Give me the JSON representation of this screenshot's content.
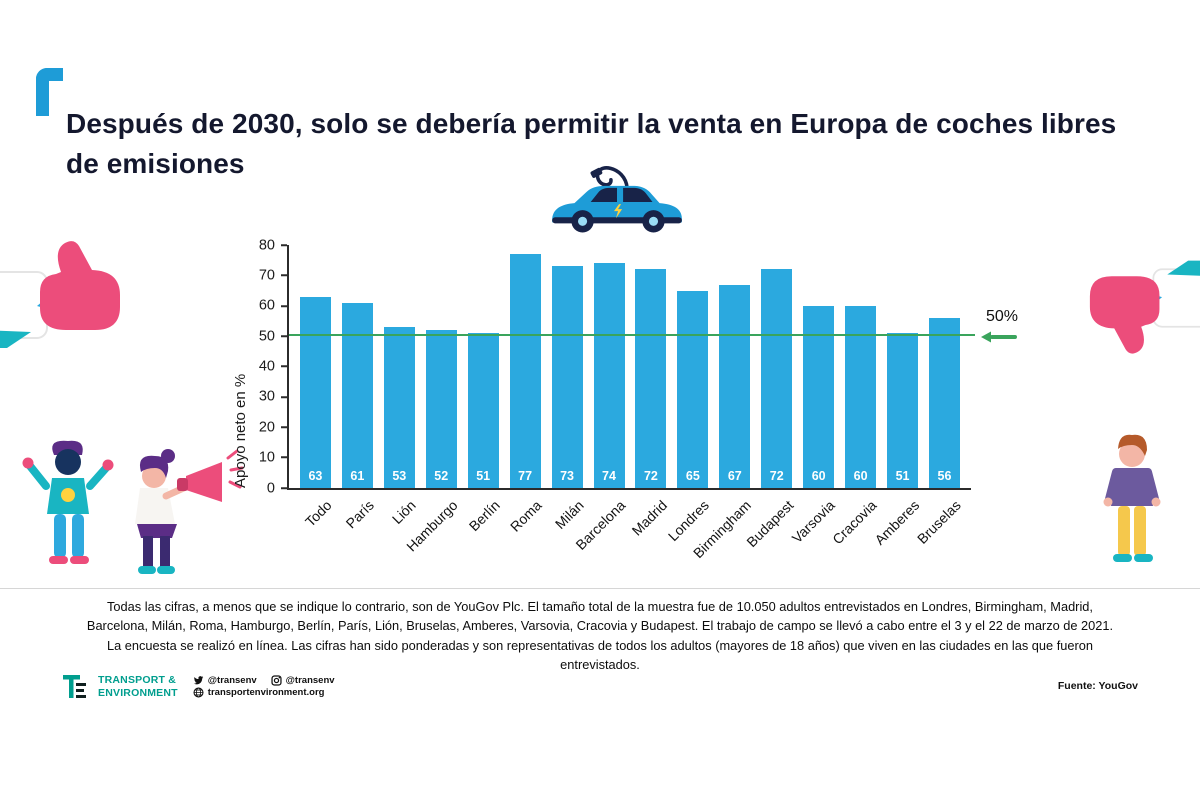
{
  "header": {
    "title": "Después de 2030, solo se debería permitir la venta en Europa de coches libres de emisiones",
    "accent_color": "#1e9cd7"
  },
  "chart_data": {
    "type": "bar",
    "title": "",
    "ylabel": "Apoyo neto en %",
    "xlabel": "",
    "ylim": [
      0,
      80
    ],
    "yticks": [
      0,
      10,
      20,
      30,
      40,
      50,
      60,
      70,
      80
    ],
    "categories": [
      "Todo",
      "París",
      "Lión",
      "Hamburgo",
      "Berlín",
      "Roma",
      "Milán",
      "Barcelona",
      "Madrid",
      "Londres",
      "Birmingham",
      "Budapest",
      "Varsovia",
      "Cracovia",
      "Amberes",
      "Bruselas"
    ],
    "values": [
      63,
      61,
      53,
      52,
      51,
      77,
      73,
      74,
      72,
      65,
      67,
      72,
      60,
      60,
      51,
      56
    ],
    "bar_color": "#2ba9df",
    "reference_line": {
      "value": 50,
      "label": "50%",
      "color": "#3aa45c"
    },
    "grid": false,
    "legend": "none"
  },
  "footnote": "Todas las cifras, a menos que se indique lo contrario, son de YouGov Plc. El tamaño total de la muestra fue de 10.050 adultos entrevistados en Londres, Birmingham, Madrid, Barcelona, Milán, Roma, Hamburgo, Berlín, París, Lión, Bruselas, Amberes, Varsovia, Cracovia y Budapest. El trabajo de campo se llevó a cabo entre el 3 y el 22 de marzo de 2021. La encuesta se realizó en línea. Las cifras han sido ponderadas y son representativas de todos los adultos (mayores de 18 años) que viven en las ciudades en las que fueron entrevistados.",
  "footer": {
    "logo_line1": "TRANSPORT &",
    "logo_line2": "ENVIRONMENT",
    "twitter_handle": "@transenv",
    "second_handle": "@transenv",
    "website": "transportenvironment.org",
    "source": "Fuente: YouGov",
    "brand_color": "#009e8e"
  },
  "icons": {
    "top_center": "electric-car",
    "left": "thumbs-up-hand",
    "right": "thumbs-down-hand",
    "bottom_left": "people-with-megaphone",
    "bottom_right": "standing-person",
    "reference": "left-arrow",
    "social_1": "twitter-bird",
    "social_2": "instagram",
    "web": "globe"
  },
  "colors": {
    "pink": "#ec4d7b",
    "teal": "#19b5c2",
    "navy": "#182348",
    "purple": "#5b2d86",
    "yellow": "#ffd23e"
  }
}
